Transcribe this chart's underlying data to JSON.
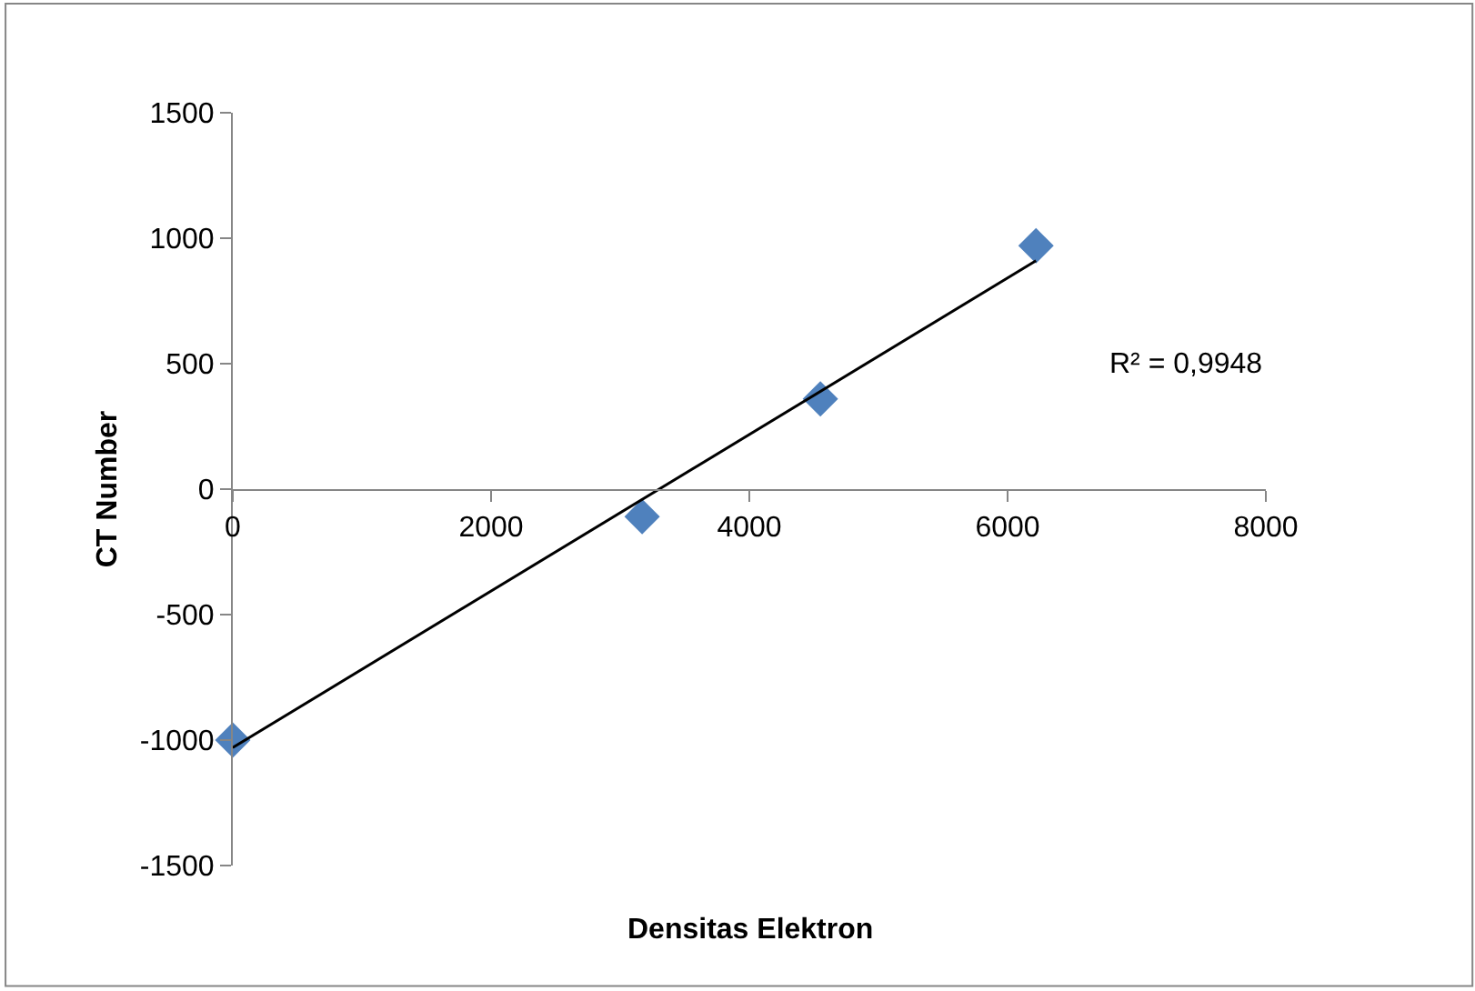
{
  "chart_data": {
    "type": "scatter",
    "xlabel": "Densitas Elektron",
    "ylabel": "CT Number",
    "xlim": [
      0,
      8000
    ],
    "xticks": [
      0,
      2000,
      4000,
      6000,
      8000
    ],
    "ylim": [
      -1500,
      1500
    ],
    "yticks": [
      -1500,
      -1000,
      -500,
      0,
      500,
      1000,
      1500
    ],
    "marker": "diamond",
    "series": [
      {
        "color": "#4f81bd",
        "x": [
          0,
          3170,
          4550,
          6220
        ],
        "values": [
          -1000,
          -110,
          360,
          970
        ]
      },
      {
        "type": "line",
        "color": "#000000",
        "x": [
          0,
          6220
        ],
        "values": [
          -1030,
          910
        ],
        "marker": "none",
        "line_style": "solid"
      }
    ],
    "annotations": [
      "R² = 0,9948"
    ]
  }
}
